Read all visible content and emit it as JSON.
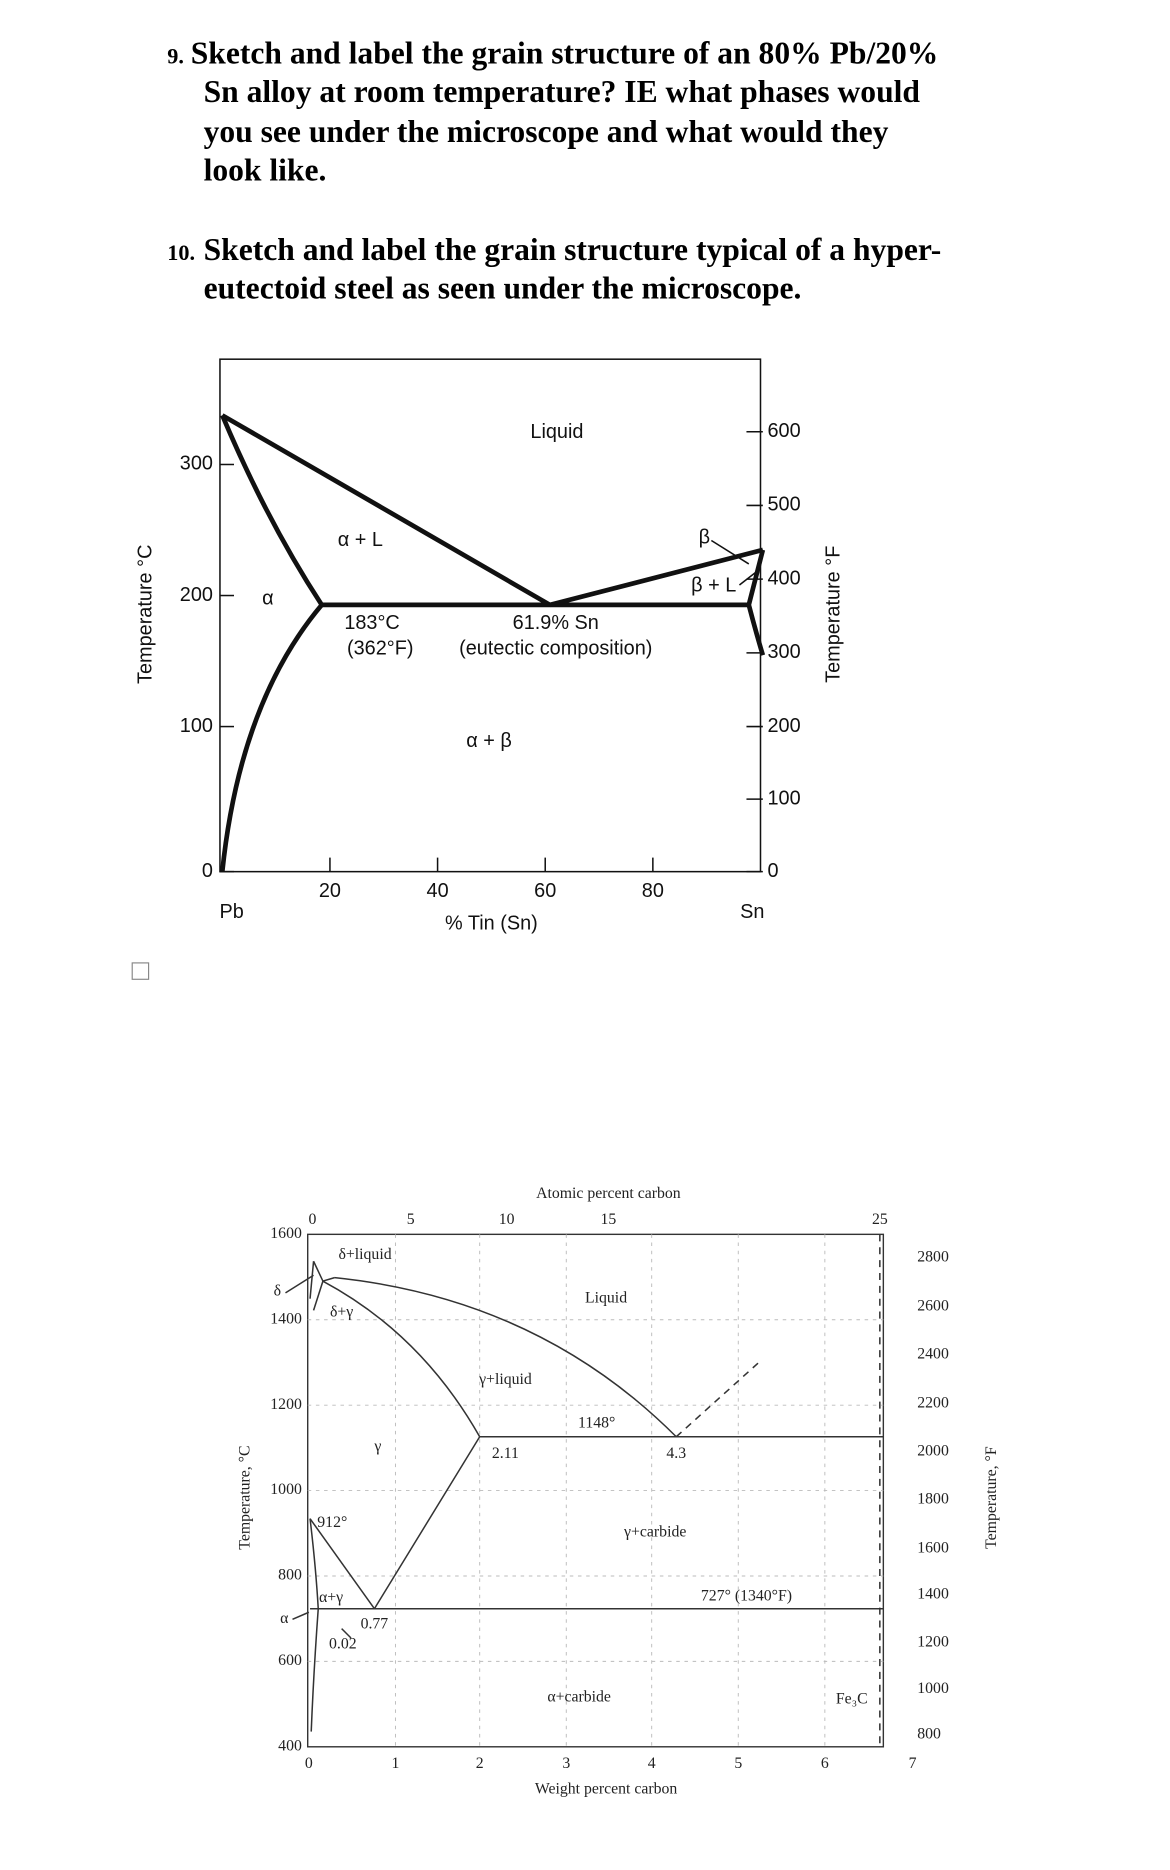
{
  "questions": [
    {
      "number": "9.",
      "lines": [
        "Sketch and label the grain structure of an 80% Pb/20%",
        "Sn alloy at room temperature? IE what phases would",
        "you see under the microscope and what would they",
        "look like."
      ]
    },
    {
      "number": "10.",
      "lines": [
        "Sketch and label the grain structure typical of a hyper-",
        "eutectoid steel as seen under the microscope."
      ]
    }
  ],
  "pb_sn_diagram": {
    "y_axis_label": "Temperature °C",
    "y2_axis_label": "Temperature °F",
    "x_axis_label": "% Tin (Sn)",
    "left_ticks": [
      0,
      100,
      200,
      300
    ],
    "right_ticks": [
      0,
      100,
      200,
      300,
      400,
      500,
      600
    ],
    "bottom_ticks": [
      20,
      40,
      60,
      80
    ],
    "left_end": "Pb",
    "right_end": "Sn",
    "labels": {
      "liquid": "Liquid",
      "alpha_l": "α + L",
      "beta": "β",
      "beta_l": "β + L",
      "alpha": "α",
      "eutectic_c": "183°C",
      "eutectic_f": "(362°F)",
      "composition": "61.9% Sn",
      "composition_note": "(eutectic composition)",
      "alpha_beta": "α + β"
    }
  },
  "fe_c_diagram": {
    "top_axis_label": "Atomic percent carbon",
    "x_axis_label": "Weight percent carbon",
    "y_axis_label": "Temperature, °C",
    "y2_axis_label": "Temperature, °F",
    "top_ticks": [
      0,
      5,
      10,
      15,
      25
    ],
    "bottom_ticks": [
      0,
      1,
      2,
      3,
      4,
      5,
      6,
      7
    ],
    "left_ticks": [
      400,
      600,
      800,
      1000,
      1200,
      1400,
      1600
    ],
    "right_ticks": [
      800,
      1000,
      1200,
      1400,
      1600,
      1800,
      2000,
      2200,
      2400,
      2600,
      2800
    ],
    "labels": {
      "delta_liquid": "δ+liquid",
      "delta": "δ",
      "delta_gamma": "δ+γ",
      "liquid": "Liquid",
      "gamma_liquid": "γ+liquid",
      "t1148": "1148°",
      "gamma": "γ",
      "c211": "2.11",
      "c43": "4.3",
      "t912": "912°",
      "gamma_carbide": "γ+carbide",
      "alpha_gamma": "α+γ",
      "t727": "727° (1340°F)",
      "alpha": "α",
      "c077": "0.77",
      "c002": "0.02",
      "alpha_carbide": "α+carbide",
      "fe3c": "Fe₃C"
    }
  }
}
